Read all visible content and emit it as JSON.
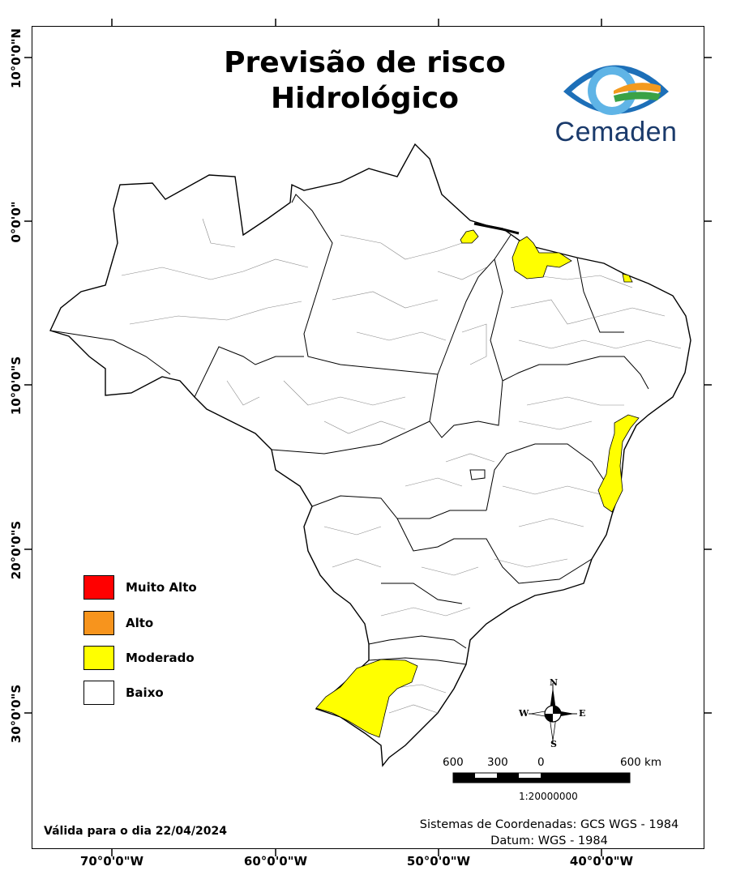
{
  "title": {
    "line1": "Previsão de risco",
    "line2": "Hidrológico"
  },
  "logo": {
    "text": "Cemaden",
    "icon": "cemaden-eye-logo-icon",
    "colors": {
      "blue": "#1d6fb8",
      "dark_blue": "#1a3a6b",
      "light_blue": "#5fb4e6",
      "orange": "#f39a1e",
      "green": "#3aa246"
    }
  },
  "axes": {
    "latitude_labels": [
      "10°0'0\"N",
      "0°0'0\"",
      "10°0'0\"S",
      "20°0'0\"S",
      "30°0'0\"S"
    ],
    "longitude_labels": [
      "70°0'0\"W",
      "60°0'0\"W",
      "50°0'0\"W",
      "40°0'0\"W"
    ]
  },
  "legend": {
    "items": [
      {
        "label": "Muito Alto",
        "color": "#ff0000"
      },
      {
        "label": "Alto",
        "color": "#f7941d"
      },
      {
        "label": "Moderado",
        "color": "#ffff00"
      },
      {
        "label": "Baixo",
        "color": "#ffffff"
      }
    ]
  },
  "risk_regions": [
    {
      "level": "Moderado",
      "area": "Amapá"
    },
    {
      "level": "Moderado",
      "area": "Maranhão"
    },
    {
      "level": "Moderado",
      "area": "Ceará"
    },
    {
      "level": "Moderado",
      "area": "Bahia"
    },
    {
      "level": "Moderado",
      "area": "Rio Grande do Sul"
    }
  ],
  "valid_text": "Válida para o dia 22/04/2024",
  "coordinate_system": {
    "line1": "Sistemas de Coordenadas: GCS WGS - 1984",
    "line2": "Datum: WGS - 1984"
  },
  "scale_bar": {
    "labels": [
      "600",
      "300",
      "0",
      "600 km"
    ],
    "ratio": "1:20000000"
  },
  "compass": {
    "north": "N",
    "south": "S",
    "east": "E",
    "west": "W"
  }
}
